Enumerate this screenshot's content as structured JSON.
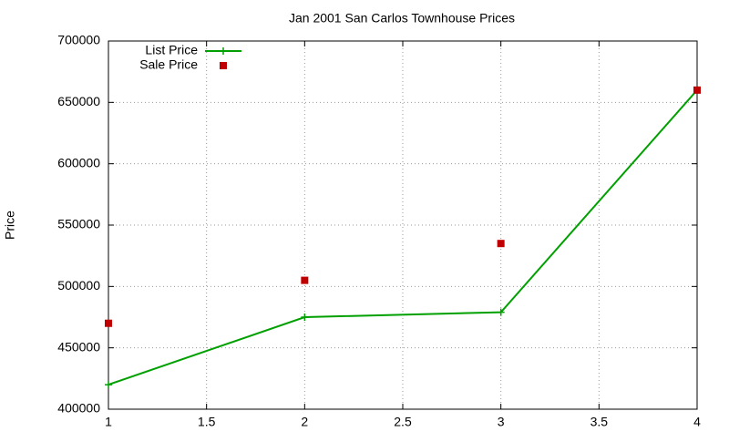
{
  "chart_data": {
    "type": "line",
    "title": "Jan 2001 San Carlos Townhouse Prices",
    "y_label": "Price",
    "x": [
      1,
      2,
      3,
      4
    ],
    "series": [
      {
        "name": "List Price",
        "color": "#00a000",
        "style": "linespoints",
        "values": [
          420000,
          475000,
          479000,
          660000
        ]
      },
      {
        "name": "Sale Price",
        "color": "#c00000",
        "style": "points",
        "values": [
          470000,
          505000,
          535000,
          660000
        ]
      }
    ],
    "xlim": [
      1,
      4
    ],
    "xticks": [
      1,
      1.5,
      2,
      2.5,
      3,
      3.5,
      4
    ],
    "ylim": [
      400000,
      700000
    ],
    "yticks": [
      400000,
      450000,
      500000,
      550000,
      600000,
      650000,
      700000
    ],
    "grid": true,
    "legend": "top-left"
  }
}
